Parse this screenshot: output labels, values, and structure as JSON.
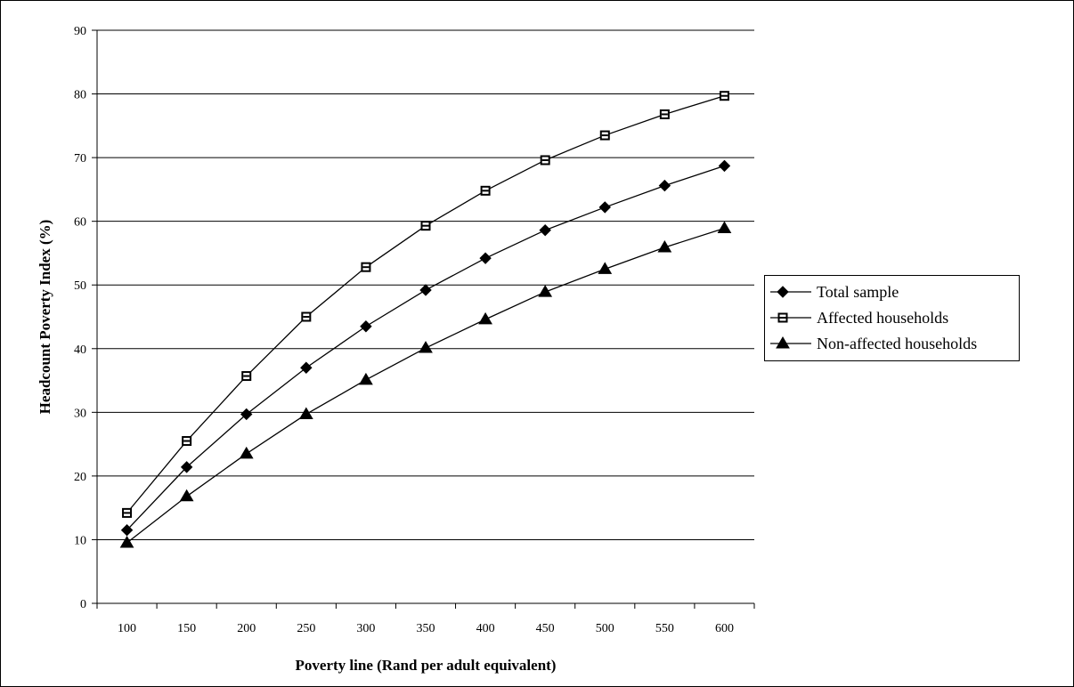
{
  "chart_data": {
    "type": "line",
    "title": "",
    "xlabel": "Poverty line (Rand per adult equivalent)",
    "ylabel": "Headcount Poverty Index (%)",
    "x": [
      100,
      150,
      200,
      250,
      300,
      350,
      400,
      450,
      500,
      550,
      600
    ],
    "ylim": [
      0,
      90
    ],
    "yticks": [
      0,
      10,
      20,
      30,
      40,
      50,
      60,
      70,
      80,
      90
    ],
    "grid": true,
    "legend_position": "right",
    "series": [
      {
        "name": "Total sample",
        "marker": "diamond",
        "values": [
          11.5,
          21.4,
          29.7,
          37.0,
          43.5,
          49.2,
          54.2,
          58.6,
          62.2,
          65.6,
          68.7
        ]
      },
      {
        "name": "Affected households",
        "marker": "square",
        "values": [
          14.2,
          25.5,
          35.7,
          45.0,
          52.8,
          59.3,
          64.8,
          69.6,
          73.5,
          76.8,
          79.7
        ]
      },
      {
        "name": "Non-affected households",
        "marker": "triangle",
        "values": [
          9.5,
          16.8,
          23.5,
          29.7,
          35.1,
          40.1,
          44.6,
          48.9,
          52.5,
          55.9,
          58.9
        ]
      }
    ]
  }
}
